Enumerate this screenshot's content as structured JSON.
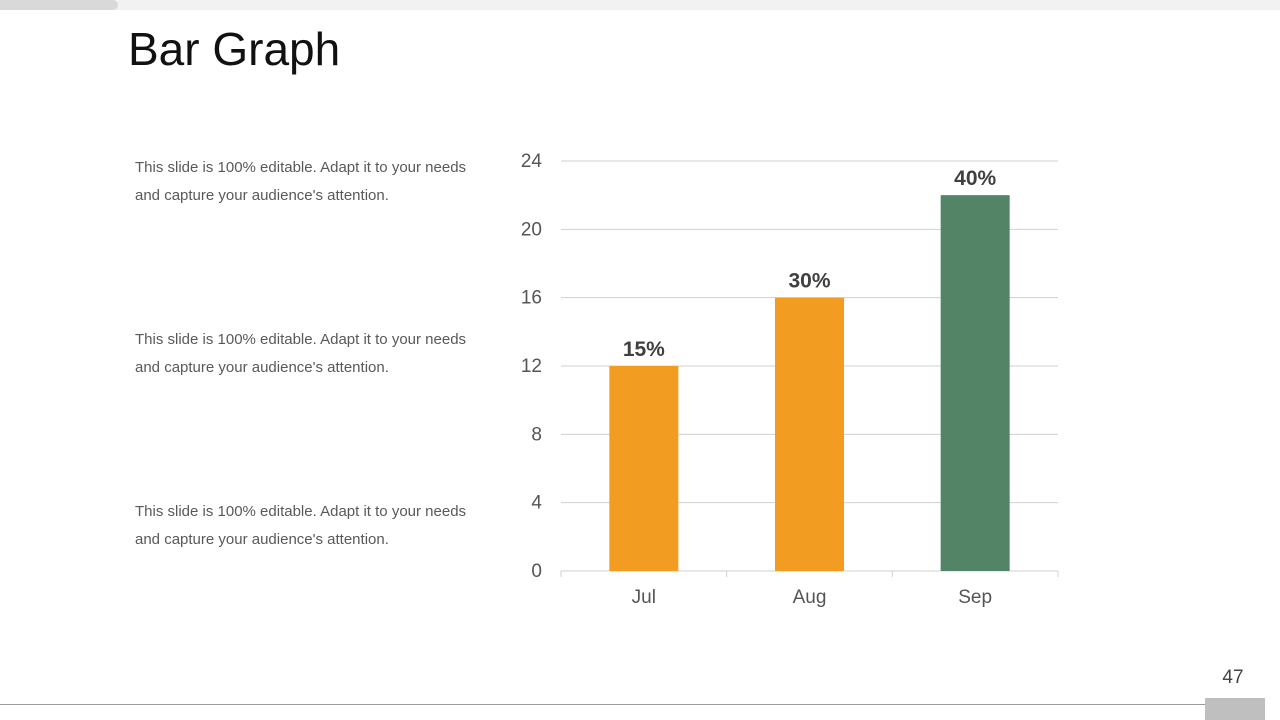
{
  "slide": {
    "title": "Bar Graph",
    "notes": [
      "This slide is 100% editable. Adapt it to your needs and capture your audience's attention.",
      "This slide is 100% editable. Adapt it to your needs and capture your audience's attention.",
      "This slide is 100% editable. Adapt it to your needs and capture your audience's attention."
    ],
    "page_number": "47"
  },
  "colors": {
    "orange": "#F39C22",
    "green": "#548466",
    "gridline": "#d0d0d0",
    "tick_text": "#555555",
    "label_text": "#404040"
  },
  "chart_data": {
    "type": "bar",
    "categories": [
      "Jul",
      "Aug",
      "Sep"
    ],
    "values": [
      12,
      16,
      22
    ],
    "data_labels": [
      "15%",
      "30%",
      "40%"
    ],
    "bar_colors": [
      "#F39C22",
      "#F39C22",
      "#548466"
    ],
    "yticks": [
      "0",
      "4",
      "8",
      "12",
      "16",
      "20",
      "24"
    ],
    "ylim": [
      0,
      24
    ],
    "grid": true,
    "title": "",
    "xlabel": "",
    "ylabel": ""
  }
}
